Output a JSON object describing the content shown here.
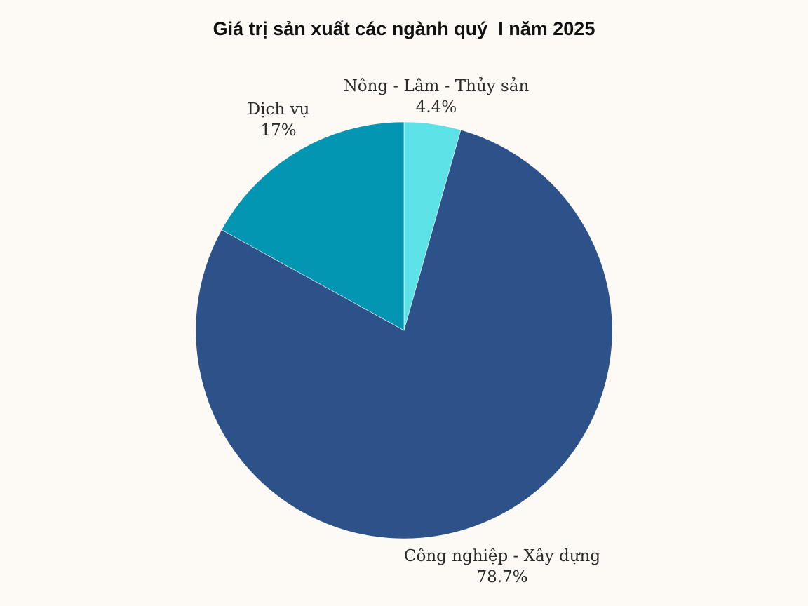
{
  "chart_data": {
    "type": "pie",
    "title": "Giá trị sản xuất các ngành quý  I năm 2025",
    "slices": [
      {
        "label": "Nông - Lâm - Thủy sản",
        "value": 4.4,
        "display": "4.4%",
        "color": "#5ce1e6"
      },
      {
        "label": "Công nghiệp - Xây dựng",
        "value": 78.7,
        "display": "78.7%",
        "color": "#2c5289"
      },
      {
        "label": "Dịch vụ",
        "value": 17,
        "display": "17%",
        "color": "#0396b2"
      }
    ],
    "start_angle_deg": 0,
    "direction": "clockwise",
    "legend": "none"
  }
}
